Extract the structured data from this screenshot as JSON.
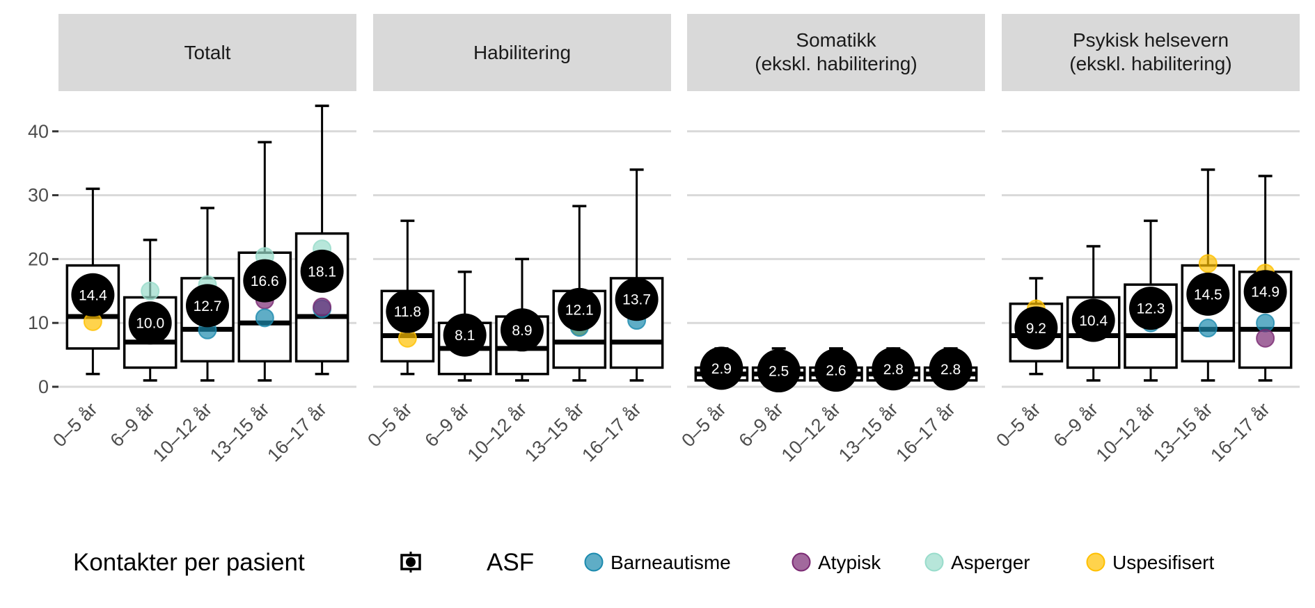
{
  "chart_data": {
    "type": "boxplot",
    "facets": [
      "Totalt",
      "Habilitering",
      "Somatikk\n(ekskl. habilitering)",
      "Psykisk helsevern\n(ekskl. habilitering)"
    ],
    "categories": [
      "0–5 år",
      "6–9 år",
      "10–12 år",
      "13–15 år",
      "16–17 år"
    ],
    "ylim": [
      0,
      44
    ],
    "yticks": [
      0,
      10,
      20,
      30,
      40
    ],
    "grid": "horizontal",
    "legend_position": "bottom",
    "box_legend_title": "Kontakter per pasient",
    "group_legend_title": "ASF",
    "groups": [
      {
        "name": "Barneautisme",
        "color": "#1b8aae"
      },
      {
        "name": "Atypisk",
        "color": "#7b2a73"
      },
      {
        "name": "Asperger",
        "color": "#98dccb"
      },
      {
        "name": "Uspesifisert",
        "color": "#ffc000"
      }
    ],
    "panels": [
      {
        "boxes": [
          {
            "whisker_low": 2,
            "q1": 6,
            "median": 11,
            "q3": 19,
            "whisker_high": 31,
            "mean": "14.4",
            "points": [
              {
                "group": "Uspesifisert",
                "value": 10.2
              }
            ]
          },
          {
            "whisker_low": 1,
            "q1": 3,
            "median": 7,
            "q3": 14,
            "whisker_high": 23,
            "mean": "10.0",
            "points": [
              {
                "group": "Asperger",
                "value": 15
              }
            ]
          },
          {
            "whisker_low": 1,
            "q1": 4,
            "median": 9,
            "q3": 17,
            "whisker_high": 28,
            "mean": "12.7",
            "points": [
              {
                "group": "Asperger",
                "value": 16
              },
              {
                "group": "Barneautisme",
                "value": 8.9
              }
            ]
          },
          {
            "whisker_low": 1,
            "q1": 4,
            "median": 10,
            "q3": 21,
            "whisker_high": 38.3,
            "mean": "16.6",
            "points": [
              {
                "group": "Asperger",
                "value": 20.4
              },
              {
                "group": "Atypisk",
                "value": 13.6
              },
              {
                "group": "Barneautisme",
                "value": 10.8
              }
            ]
          },
          {
            "whisker_low": 2,
            "q1": 4,
            "median": 11,
            "q3": 24,
            "whisker_high": 44,
            "mean": "18.1",
            "points": [
              {
                "group": "Asperger",
                "value": 21.6
              },
              {
                "group": "Barneautisme",
                "value": 12.2
              },
              {
                "group": "Atypisk",
                "value": 12.5
              }
            ]
          }
        ]
      },
      {
        "boxes": [
          {
            "whisker_low": 2,
            "q1": 4,
            "median": 8,
            "q3": 15,
            "whisker_high": 26,
            "mean": "11.8",
            "points": [
              {
                "group": "Uspesifisert",
                "value": 7.6
              }
            ]
          },
          {
            "whisker_low": 1,
            "q1": 2,
            "median": 6,
            "q3": 10,
            "whisker_high": 18,
            "mean": "8.1",
            "points": []
          },
          {
            "whisker_low": 1,
            "q1": 2,
            "median": 6,
            "q3": 11,
            "whisker_high": 20,
            "mean": "8.9",
            "points": []
          },
          {
            "whisker_low": 1,
            "q1": 3,
            "median": 7,
            "q3": 15,
            "whisker_high": 28.3,
            "mean": "12.1",
            "points": [
              {
                "group": "Uspesifisert",
                "value": 9.5
              },
              {
                "group": "Barneautisme",
                "value": 9.3
              }
            ]
          },
          {
            "whisker_low": 1,
            "q1": 3,
            "median": 7,
            "q3": 17,
            "whisker_high": 34,
            "mean": "13.7",
            "points": [
              {
                "group": "Barneautisme",
                "value": 10.4
              }
            ]
          }
        ]
      },
      {
        "boxes": [
          {
            "whisker_low": 1,
            "q1": 1,
            "median": 2,
            "q3": 3,
            "whisker_high": 6,
            "mean": "2.9",
            "points": []
          },
          {
            "whisker_low": 1,
            "q1": 1,
            "median": 2,
            "q3": 3,
            "whisker_high": 6,
            "mean": "2.5",
            "points": []
          },
          {
            "whisker_low": 1,
            "q1": 1,
            "median": 2,
            "q3": 3,
            "whisker_high": 6,
            "mean": "2.6",
            "points": []
          },
          {
            "whisker_low": 1,
            "q1": 1,
            "median": 2,
            "q3": 3,
            "whisker_high": 6,
            "mean": "2.8",
            "points": []
          },
          {
            "whisker_low": 1,
            "q1": 1,
            "median": 2,
            "q3": 3,
            "whisker_high": 6,
            "mean": "2.8",
            "points": []
          }
        ]
      },
      {
        "boxes": [
          {
            "whisker_low": 2,
            "q1": 4,
            "median": 8,
            "q3": 13,
            "whisker_high": 17,
            "mean": "9.2",
            "points": [
              {
                "group": "Uspesifisert",
                "value": 12.2
              }
            ]
          },
          {
            "whisker_low": 1,
            "q1": 3,
            "median": 8,
            "q3": 14,
            "whisker_high": 22,
            "mean": "10.4",
            "points": []
          },
          {
            "whisker_low": 1,
            "q1": 3,
            "median": 8,
            "q3": 16,
            "whisker_high": 26,
            "mean": "12.3",
            "points": [
              {
                "group": "Barneautisme",
                "value": 10
              }
            ]
          },
          {
            "whisker_low": 1,
            "q1": 4,
            "median": 9,
            "q3": 19,
            "whisker_high": 34,
            "mean": "14.5",
            "points": [
              {
                "group": "Uspesifisert",
                "value": 19.3
              },
              {
                "group": "Barneautisme",
                "value": 9.2
              }
            ]
          },
          {
            "whisker_low": 1,
            "q1": 3,
            "median": 9,
            "q3": 18,
            "whisker_high": 33,
            "mean": "14.9",
            "points": [
              {
                "group": "Uspesifisert",
                "value": 17.8
              },
              {
                "group": "Barneautisme",
                "value": 10
              },
              {
                "group": "Atypisk",
                "value": 7.6
              }
            ]
          }
        ]
      }
    ]
  }
}
